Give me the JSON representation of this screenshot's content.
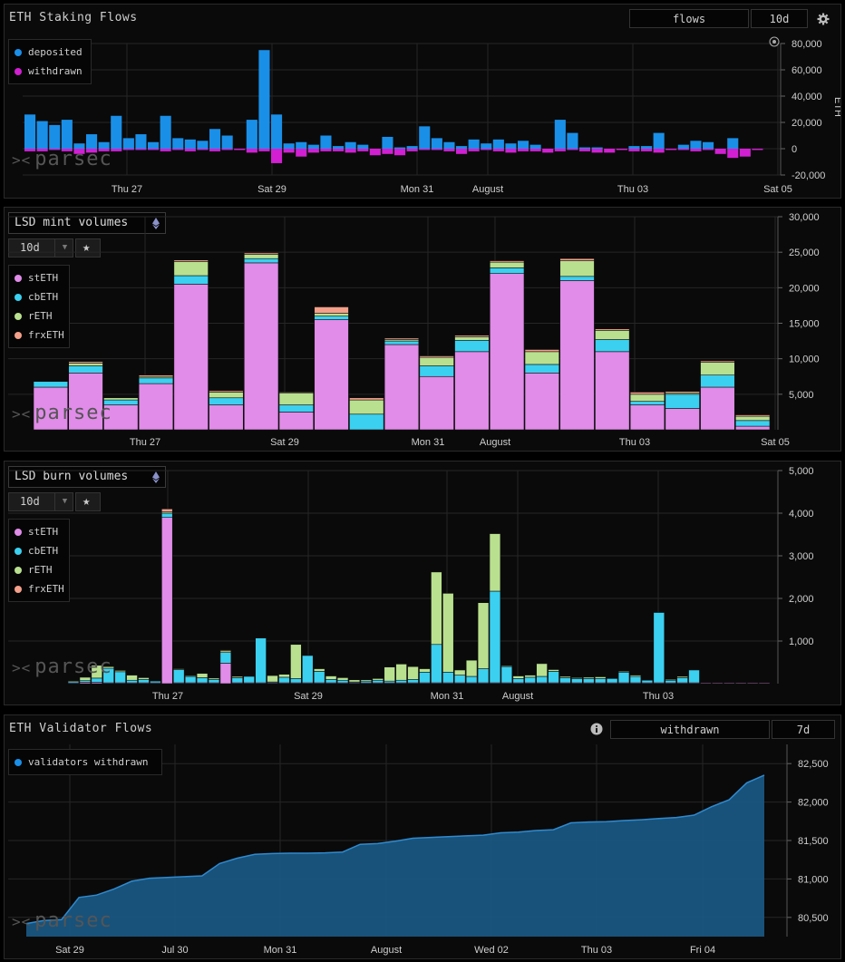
{
  "panels": [
    {
      "title": "ETH Staking Flows",
      "dropdown": "flows",
      "period": "10d",
      "watermark": "parsec",
      "legend": [
        "deposited",
        "withdrawn"
      ],
      "y_ticks": [
        "80,000",
        "60,000",
        "40,000",
        "20,000",
        "0",
        "-20,000"
      ],
      "y_unit": "ETH",
      "x_ticks": [
        "Thu 27",
        "Sat 29",
        "Mon 31",
        "August",
        "Thu 03",
        "Sat 05"
      ]
    },
    {
      "title": "LSD mint volumes",
      "period": "10d",
      "watermark": "parsec",
      "legend": [
        "stETH",
        "cbETH",
        "rETH",
        "frxETH"
      ],
      "y_ticks": [
        "30,000",
        "25,000",
        "20,000",
        "15,000",
        "10,000",
        "5,000"
      ],
      "x_ticks": [
        "Thu 27",
        "Sat 29",
        "Mon 31",
        "August",
        "Thu 03",
        "Sat 05"
      ]
    },
    {
      "title": "LSD burn volumes",
      "period": "10d",
      "watermark": "parsec",
      "legend": [
        "stETH",
        "cbETH",
        "rETH",
        "frxETH"
      ],
      "y_ticks": [
        "5,000",
        "4,000",
        "3,000",
        "2,000",
        "1,000"
      ],
      "x_ticks": [
        "Thu 27",
        "Sat 29",
        "Mon 31",
        "August",
        "Thu 03"
      ]
    },
    {
      "title": "ETH Validator Flows",
      "dropdown": "withdrawn",
      "period": "7d",
      "watermark": "parsec",
      "legend": [
        "validators withdrawn"
      ],
      "y_ticks": [
        "82,500",
        "82,000",
        "81,500",
        "81,000",
        "80,500"
      ],
      "x_ticks": [
        "Sat 29",
        "Jul 30",
        "Mon 31",
        "August",
        "Wed 02",
        "Thu 03",
        "Fri 04"
      ]
    }
  ],
  "colors": {
    "deposited": "#1a8fe8",
    "withdrawn": "#d21fd2",
    "stETH": "#e08ce8",
    "cbETH": "#3bd0f0",
    "rETH": "#b9e08f",
    "frxETH": "#f4a08a",
    "validators": "#1a5a86",
    "validators_line": "#2f8ad0"
  },
  "chart_data": [
    {
      "type": "bar",
      "title": "ETH Staking Flows",
      "ylabel": "ETH",
      "ylim": [
        -20000,
        80000
      ],
      "series": [
        {
          "name": "deposited",
          "values": [
            26000,
            21000,
            18000,
            22000,
            4000,
            11000,
            5000,
            25000,
            8000,
            11000,
            5000,
            25000,
            8000,
            7000,
            6000,
            15000,
            10000,
            0,
            22000,
            75000,
            26000,
            4000,
            5000,
            3000,
            10000,
            2000,
            5000,
            3000,
            0,
            9000,
            1000,
            2000,
            17000,
            8000,
            5000,
            2000,
            7000,
            4000,
            7000,
            4000,
            6000,
            3000,
            0,
            22000,
            12000,
            1000,
            1000,
            0,
            0,
            2000,
            2000,
            12000,
            0,
            3000,
            6000,
            5000,
            0,
            8000,
            0,
            0
          ]
        },
        {
          "name": "withdrawn",
          "values": [
            -2000,
            -2000,
            -1000,
            -2000,
            -4000,
            -3000,
            -2000,
            -2000,
            -1000,
            -1000,
            -1000,
            -2000,
            -1000,
            -2000,
            -1000,
            -2000,
            -1000,
            -1000,
            -3000,
            -2000,
            -11000,
            -3000,
            -6000,
            -3000,
            -2000,
            -2000,
            -3000,
            -2000,
            -5000,
            -4000,
            -5000,
            -2000,
            -1000,
            -1000,
            -2000,
            -4000,
            -2000,
            -1000,
            -2000,
            -3000,
            -2000,
            -2000,
            -3000,
            -2000,
            -1000,
            -2000,
            -3000,
            -3000,
            -1000,
            -2000,
            -2000,
            -3000,
            -1000,
            -1000,
            -2000,
            -1000,
            -4000,
            -7000,
            -6000,
            -1000
          ]
        }
      ]
    },
    {
      "type": "bar",
      "title": "LSD mint volumes",
      "ylim": [
        0,
        30000
      ],
      "series": [
        {
          "name": "stETH",
          "values": [
            6000,
            8000,
            3500,
            6500,
            20500,
            3500,
            23500,
            2500,
            15500,
            0,
            12000,
            7500,
            11000,
            22000,
            8000,
            21000,
            11000,
            3500,
            3000,
            6000,
            500
          ]
        },
        {
          "name": "cbETH",
          "values": [
            800,
            1000,
            700,
            800,
            1200,
            1000,
            600,
            1000,
            500,
            2200,
            500,
            1500,
            1600,
            800,
            1200,
            600,
            1700,
            500,
            2000,
            1700,
            800
          ]
        },
        {
          "name": "rETH",
          "values": [
            0,
            400,
            300,
            200,
            2000,
            800,
            600,
            1700,
            400,
            2000,
            200,
            1200,
            500,
            800,
            1800,
            2200,
            1300,
            1000,
            200,
            1800,
            600
          ]
        },
        {
          "name": "frxETH",
          "values": [
            0,
            200,
            0,
            200,
            200,
            200,
            200,
            100,
            900,
            300,
            200,
            200,
            200,
            200,
            300,
            300,
            200,
            300,
            200,
            200,
            200
          ]
        }
      ]
    },
    {
      "type": "bar",
      "title": "LSD burn volumes",
      "ylim": [
        0,
        5000
      ],
      "series": [
        {
          "name": "stETH",
          "values": [
            20,
            30,
            30,
            20,
            20,
            20,
            20,
            20,
            3900,
            20,
            20,
            20,
            20,
            480,
            20,
            20,
            20,
            20,
            20,
            20,
            20,
            20,
            20,
            20,
            20,
            20,
            20,
            20,
            20,
            20,
            20,
            20,
            20,
            20,
            20,
            20,
            20,
            20,
            20,
            20,
            20,
            20,
            20,
            20,
            20,
            20,
            20,
            20,
            20,
            20,
            20,
            20,
            20,
            20,
            20,
            20,
            20,
            20,
            20,
            20
          ]
        },
        {
          "name": "cbETH",
          "values": [
            30,
            40,
            100,
            340,
            260,
            60,
            80,
            40,
            100,
            310,
            150,
            120,
            80,
            250,
            120,
            150,
            1050,
            20,
            130,
            100,
            640,
            270,
            80,
            60,
            20,
            40,
            60,
            40,
            60,
            80,
            250,
            900,
            250,
            180,
            150,
            330,
            2150,
            380,
            100,
            130,
            150,
            270,
            120,
            100,
            100,
            100,
            100,
            250,
            150,
            60,
            1650,
            60,
            120,
            300,
            0,
            0,
            0,
            0,
            0,
            0
          ]
        },
        {
          "name": "rETH",
          "values": [
            20,
            80,
            300,
            40,
            30,
            120,
            40,
            0,
            30,
            20,
            20,
            100,
            30,
            40,
            30,
            0,
            0,
            150,
            70,
            800,
            0,
            60,
            80,
            60,
            50,
            30,
            40,
            330,
            380,
            300,
            80,
            1700,
            1850,
            120,
            380,
            1550,
            1350,
            20,
            60,
            50,
            300,
            40,
            30,
            20,
            30,
            40,
            0,
            20,
            30,
            0,
            0,
            20,
            30,
            0,
            0,
            0,
            0,
            0,
            0,
            0
          ]
        },
        {
          "name": "frxETH",
          "values": [
            0,
            0,
            0,
            0,
            0,
            0,
            0,
            0,
            70,
            0,
            0,
            0,
            0,
            20,
            0,
            0,
            0,
            0,
            0,
            0,
            0,
            0,
            0,
            0,
            0,
            0,
            0,
            0,
            0,
            0,
            0,
            0,
            0,
            0,
            0,
            0,
            0,
            0,
            0,
            0,
            0,
            0,
            0,
            0,
            0,
            0,
            0,
            0,
            0,
            0,
            0,
            0,
            0,
            0,
            0,
            0,
            0,
            0,
            0,
            0
          ]
        }
      ]
    },
    {
      "type": "area",
      "title": "ETH Validator Flows",
      "ylim": [
        80250,
        82750
      ],
      "series": [
        {
          "name": "validators withdrawn",
          "values": [
            80420,
            80460,
            80470,
            80760,
            80790,
            80870,
            80970,
            81010,
            81020,
            81030,
            81040,
            81200,
            81270,
            81320,
            81330,
            81335,
            81335,
            81340,
            81350,
            81450,
            81460,
            81490,
            81530,
            81540,
            81550,
            81560,
            81570,
            81600,
            81610,
            81630,
            81640,
            81730,
            81740,
            81745,
            81760,
            81770,
            81785,
            81800,
            81830,
            81940,
            82030,
            82250,
            82350
          ]
        }
      ]
    }
  ]
}
